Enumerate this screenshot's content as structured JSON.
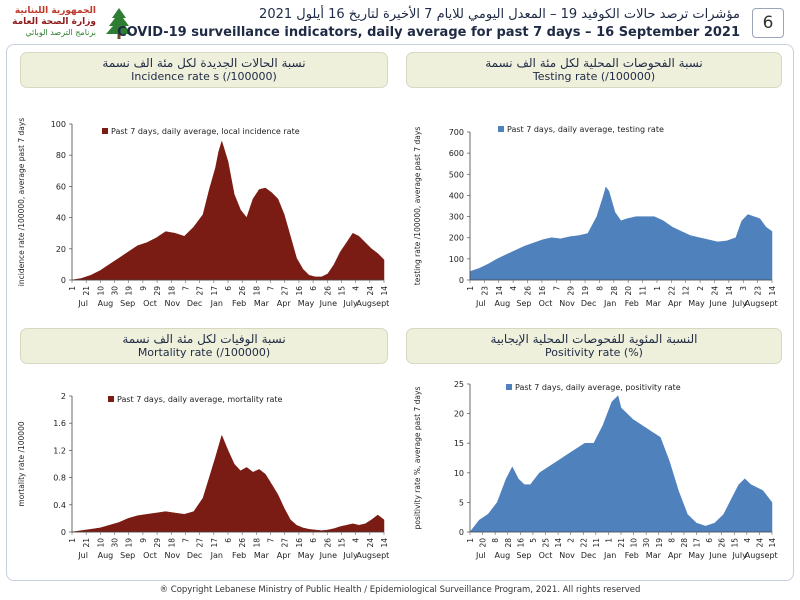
{
  "header": {
    "logo_ar_line1": "الجمهورية اللبنانية",
    "logo_ar_line2": "وزارة الصحة العامة",
    "logo_ar_line3": "برنامج الترصد الوبائي",
    "title_ar": "مؤشرات ترصد حالات الكوفيد 19 – المعدل اليومي للايام 7 الأخيرة لتاريخ 16 أيلول 2021",
    "title_en": "COVID-19 surveillance indicators, daily average for past 7 days – 16 September 2021",
    "page_number": "6"
  },
  "panels": {
    "incidence": {
      "title_ar": "نسبة الحالات الجديدة لكل مئة الف نسمة",
      "title_en": "Incidence rate s  (/100000)"
    },
    "testing": {
      "title_ar": "نسبة الفحوصات المحلية لكل مئة الف نسمة",
      "title_en": "Testing rate  (/100000)"
    },
    "mortality": {
      "title_ar": "نسبة الوفيات لكل مئة الف نسمة",
      "title_en": "Mortality rate  (/100000)"
    },
    "positivity": {
      "title_ar": "النسبة المئوية للفحوصات المحلية الإيجابية",
      "title_en": "Positivity rate  (%)"
    }
  },
  "footer": "® Copyright Lebanese Ministry of Public Health / Epidemiological Surveillance Program, 2021.  All rights reserved",
  "chart_data": [
    {
      "type": "area",
      "legend": "Past 7 days, daily average, local incidence rate",
      "ylabel": "incidence rate /100000, average past 7 days",
      "ylim": [
        0,
        100
      ],
      "yticks": [
        0,
        20,
        40,
        60,
        80,
        100
      ],
      "day_ticks": [
        "1",
        "21",
        "10",
        "30",
        "19",
        "9",
        "29",
        "18",
        "7",
        "27",
        "17",
        "6",
        "26",
        "18",
        "7",
        "27",
        "16",
        "6",
        "26",
        "15",
        "4",
        "24",
        "14"
      ],
      "months": [
        "Jul",
        "Aug",
        "Sep",
        "Oct",
        "Nov",
        "Dec",
        "Jan",
        "Feb",
        "Mar",
        "Apr",
        "May",
        "June",
        "July",
        "Augsept"
      ],
      "color": "#7b1c14",
      "x": [
        0,
        0.03,
        0.06,
        0.09,
        0.12,
        0.15,
        0.18,
        0.21,
        0.24,
        0.27,
        0.3,
        0.33,
        0.36,
        0.39,
        0.42,
        0.44,
        0.46,
        0.47,
        0.48,
        0.5,
        0.52,
        0.54,
        0.56,
        0.58,
        0.6,
        0.62,
        0.64,
        0.66,
        0.68,
        0.7,
        0.72,
        0.74,
        0.76,
        0.78,
        0.8,
        0.82,
        0.84,
        0.86,
        0.88,
        0.9,
        0.92,
        0.94,
        0.96,
        0.98,
        1
      ],
      "values": [
        0,
        1,
        3,
        6,
        10,
        14,
        18,
        22,
        24,
        27,
        31,
        30,
        28,
        34,
        42,
        58,
        72,
        82,
        89,
        76,
        55,
        45,
        40,
        52,
        58,
        59,
        56,
        52,
        42,
        28,
        14,
        7,
        3,
        2,
        2,
        4,
        10,
        18,
        24,
        30,
        28,
        24,
        20,
        17,
        13
      ]
    },
    {
      "type": "area",
      "legend": "Past 7 days, daily average, testing rate",
      "ylabel": "testing rate /100000, average past 7 days",
      "ylim": [
        0,
        700
      ],
      "yticks": [
        0,
        100,
        200,
        300,
        400,
        500,
        600,
        700
      ],
      "day_ticks": [
        "1",
        "23",
        "14",
        "4",
        "26",
        "16",
        "7",
        "29",
        "19",
        "8",
        "28",
        "20",
        "11",
        "1",
        "22",
        "12",
        "2",
        "24",
        "14",
        "3",
        "23",
        "14"
      ],
      "months": [
        "Jul",
        "Aug",
        "Sep",
        "Oct",
        "Nov",
        "Dec",
        "Jan",
        "Feb",
        "Mar",
        "Apr",
        "May",
        "June",
        "July",
        "Augsept"
      ],
      "color": "#4f81bd",
      "x": [
        0,
        0.03,
        0.06,
        0.09,
        0.12,
        0.15,
        0.18,
        0.21,
        0.24,
        0.27,
        0.3,
        0.33,
        0.36,
        0.39,
        0.42,
        0.44,
        0.45,
        0.46,
        0.48,
        0.5,
        0.52,
        0.55,
        0.58,
        0.61,
        0.64,
        0.67,
        0.7,
        0.73,
        0.76,
        0.79,
        0.82,
        0.85,
        0.88,
        0.9,
        0.92,
        0.94,
        0.96,
        0.98,
        1
      ],
      "values": [
        40,
        55,
        75,
        100,
        120,
        140,
        160,
        175,
        190,
        200,
        195,
        205,
        210,
        220,
        300,
        390,
        440,
        420,
        320,
        280,
        290,
        300,
        300,
        300,
        280,
        250,
        230,
        210,
        200,
        190,
        180,
        185,
        200,
        280,
        310,
        300,
        290,
        250,
        230
      ]
    },
    {
      "type": "area",
      "legend": "Past 7 days, daily average, mortality rate",
      "ylabel": "mortality rate /100000",
      "ylim": [
        0,
        2
      ],
      "yticks": [
        0,
        0.4,
        0.8,
        1.2,
        1.6,
        2
      ],
      "ytick_labels": [
        "0",
        "0.4",
        "0.8",
        "1.2",
        "1.6",
        "2"
      ],
      "day_ticks": [
        "1",
        "21",
        "10",
        "30",
        "19",
        "9",
        "29",
        "18",
        "7",
        "27",
        "17",
        "6",
        "26",
        "18",
        "7",
        "27",
        "16",
        "6",
        "26",
        "15",
        "4",
        "24",
        "14"
      ],
      "months": [
        "Jul",
        "Aug",
        "Sep",
        "Oct",
        "Nov",
        "Dec",
        "Jan",
        "Feb",
        "Mar",
        "Apr",
        "May",
        "June",
        "July",
        "Augsept"
      ],
      "color": "#7b1c14",
      "x": [
        0,
        0.03,
        0.06,
        0.09,
        0.12,
        0.15,
        0.18,
        0.21,
        0.24,
        0.27,
        0.3,
        0.33,
        0.36,
        0.39,
        0.42,
        0.44,
        0.46,
        0.48,
        0.5,
        0.52,
        0.54,
        0.56,
        0.58,
        0.6,
        0.62,
        0.64,
        0.66,
        0.68,
        0.7,
        0.72,
        0.74,
        0.76,
        0.78,
        0.8,
        0.82,
        0.84,
        0.86,
        0.88,
        0.9,
        0.92,
        0.94,
        0.96,
        0.98,
        1
      ],
      "values": [
        0,
        0.02,
        0.04,
        0.06,
        0.1,
        0.14,
        0.2,
        0.24,
        0.26,
        0.28,
        0.3,
        0.28,
        0.26,
        0.3,
        0.5,
        0.8,
        1.1,
        1.42,
        1.2,
        1.0,
        0.9,
        0.95,
        0.88,
        0.92,
        0.85,
        0.7,
        0.55,
        0.35,
        0.18,
        0.1,
        0.06,
        0.04,
        0.03,
        0.02,
        0.03,
        0.05,
        0.08,
        0.1,
        0.12,
        0.1,
        0.12,
        0.18,
        0.25,
        0.18
      ]
    },
    {
      "type": "area",
      "legend": "Past 7 days, daily average, positivity rate",
      "ylabel": "positivity rate %, average past 7 days",
      "ylim": [
        0,
        25
      ],
      "yticks": [
        0,
        5,
        10,
        15,
        20,
        25
      ],
      "day_ticks": [
        "1",
        "20",
        "8",
        "28",
        "16",
        "5",
        "25",
        "14",
        "2",
        "22",
        "11",
        "1",
        "21",
        "10",
        "30",
        "19",
        "8",
        "28",
        "17",
        "6",
        "26",
        "15",
        "4",
        "24",
        "14"
      ],
      "months": [
        "Jul",
        "Aug",
        "Sep",
        "Oct",
        "Nov",
        "Dec",
        "Jan",
        "Feb",
        "Mar",
        "Apr",
        "May",
        "June",
        "July",
        "Augsept"
      ],
      "color": "#4f81bd",
      "x": [
        0,
        0.03,
        0.06,
        0.09,
        0.12,
        0.14,
        0.16,
        0.18,
        0.2,
        0.23,
        0.26,
        0.29,
        0.32,
        0.35,
        0.38,
        0.41,
        0.44,
        0.47,
        0.49,
        0.5,
        0.52,
        0.54,
        0.57,
        0.6,
        0.63,
        0.66,
        0.69,
        0.72,
        0.75,
        0.78,
        0.81,
        0.84,
        0.87,
        0.89,
        0.91,
        0.93,
        0.95,
        0.97,
        1
      ],
      "values": [
        0,
        2,
        3,
        5,
        9,
        11,
        9,
        8,
        8,
        10,
        11,
        12,
        13,
        14,
        15,
        15,
        18,
        22,
        23,
        21,
        20,
        19,
        18,
        17,
        16,
        12,
        7,
        3,
        1.5,
        1,
        1.5,
        3,
        6,
        8,
        9,
        8,
        7.5,
        7,
        5
      ]
    }
  ]
}
